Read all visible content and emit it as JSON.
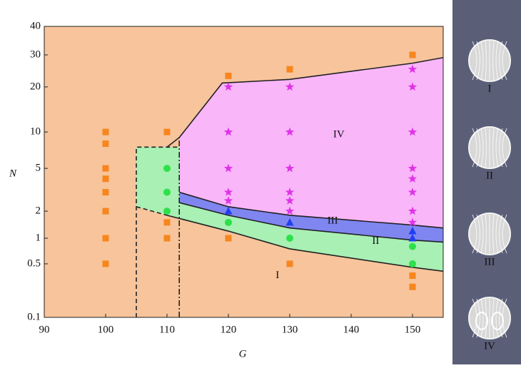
{
  "chart_data": {
    "type": "phase",
    "xlabel": "G",
    "ylabel": "N",
    "xlim": [
      90,
      155
    ],
    "xticks": [
      90,
      100,
      110,
      120,
      130,
      140,
      150
    ],
    "ylim": [
      0.1,
      40
    ],
    "yticks": [
      0.1,
      0.5,
      1,
      2,
      5,
      10,
      20,
      30,
      40
    ],
    "background_color": "#f7c49b",
    "regions": [
      {
        "label": "II",
        "color": "#a8f0b4",
        "x": [
          105,
          110,
          120,
          130,
          150,
          155,
          155,
          150,
          130,
          120,
          112,
          112,
          105
        ],
        "y": [
          2.2,
          1.8,
          1.2,
          0.75,
          0.45,
          0.4,
          0.9,
          0.95,
          1.3,
          1.8,
          2.4,
          7.5,
          7.5
        ]
      },
      {
        "label": "III",
        "color": "#7f86f0",
        "x": [
          112,
          120,
          130,
          150,
          155,
          155,
          150,
          130,
          120,
          112
        ],
        "y": [
          2.4,
          1.8,
          1.3,
          0.95,
          0.9,
          1.3,
          1.4,
          1.8,
          2.2,
          3
        ]
      },
      {
        "label": "IV",
        "color": "#f9b6f9",
        "x": [
          112,
          120,
          130,
          150,
          155,
          155,
          150,
          130,
          119,
          112
        ],
        "y": [
          3,
          2.2,
          1.8,
          1.4,
          1.3,
          29,
          27,
          22,
          21,
          9
        ]
      }
    ],
    "region_I_label": "I",
    "boundaries": [
      {
        "dash": "none",
        "x": [
          110,
          112,
          119,
          130,
          150,
          155
        ],
        "y": [
          7.5,
          9,
          21,
          22,
          27,
          29
        ]
      },
      {
        "dash": "none",
        "x": [
          112,
          120,
          130,
          150,
          155
        ],
        "y": [
          3,
          2.2,
          1.8,
          1.4,
          1.3
        ]
      },
      {
        "dash": "none",
        "x": [
          112,
          120,
          130,
          150,
          155
        ],
        "y": [
          2.4,
          1.8,
          1.3,
          0.95,
          0.9
        ]
      },
      {
        "dash": "none",
        "x": [
          110,
          120,
          130,
          150,
          155
        ],
        "y": [
          1.8,
          1.2,
          0.75,
          0.45,
          0.4
        ]
      },
      {
        "dash": "6 4",
        "x": [
          105,
          105,
          112
        ],
        "y": [
          0.1,
          7.5,
          7.5
        ]
      },
      {
        "dash": "6 4",
        "x": [
          105,
          110
        ],
        "y": [
          2.2,
          1.8
        ]
      },
      {
        "dash": "8 3 2 3",
        "x": [
          112,
          112
        ],
        "y": [
          0.1,
          9
        ]
      }
    ],
    "series": [
      {
        "marker": "square",
        "color": "#f7861e",
        "x": [
          100,
          100,
          100,
          100,
          100,
          100,
          100,
          100,
          110,
          110,
          110,
          120,
          120,
          130,
          130,
          150,
          150,
          150
        ],
        "y": [
          10,
          8,
          5,
          4,
          3,
          2,
          1,
          0.5,
          10,
          1.5,
          1,
          23,
          1,
          25,
          0.5,
          30,
          0.35,
          0.25
        ]
      },
      {
        "marker": "circle",
        "color": "#2ee04a",
        "x": [
          110,
          110,
          110,
          120,
          130,
          150,
          150
        ],
        "y": [
          5,
          3,
          2,
          1.5,
          1,
          0.8,
          0.5
        ]
      },
      {
        "marker": "triangle",
        "color": "#1f3ff0",
        "x": [
          120,
          130,
          150,
          150
        ],
        "y": [
          2,
          1.5,
          1.2,
          1
        ]
      },
      {
        "marker": "star",
        "color": "#e033e8",
        "x": [
          120,
          120,
          120,
          120,
          120,
          130,
          130,
          130,
          130,
          130,
          130,
          150,
          150,
          150,
          150,
          150,
          150,
          150,
          150
        ],
        "y": [
          20,
          10,
          5,
          3,
          2.5,
          20,
          10,
          5,
          3,
          2.5,
          2,
          25,
          20,
          10,
          5,
          4,
          3,
          2,
          1.5
        ]
      }
    ],
    "panel_labels": [
      "I",
      "II",
      "III",
      "IV"
    ]
  }
}
